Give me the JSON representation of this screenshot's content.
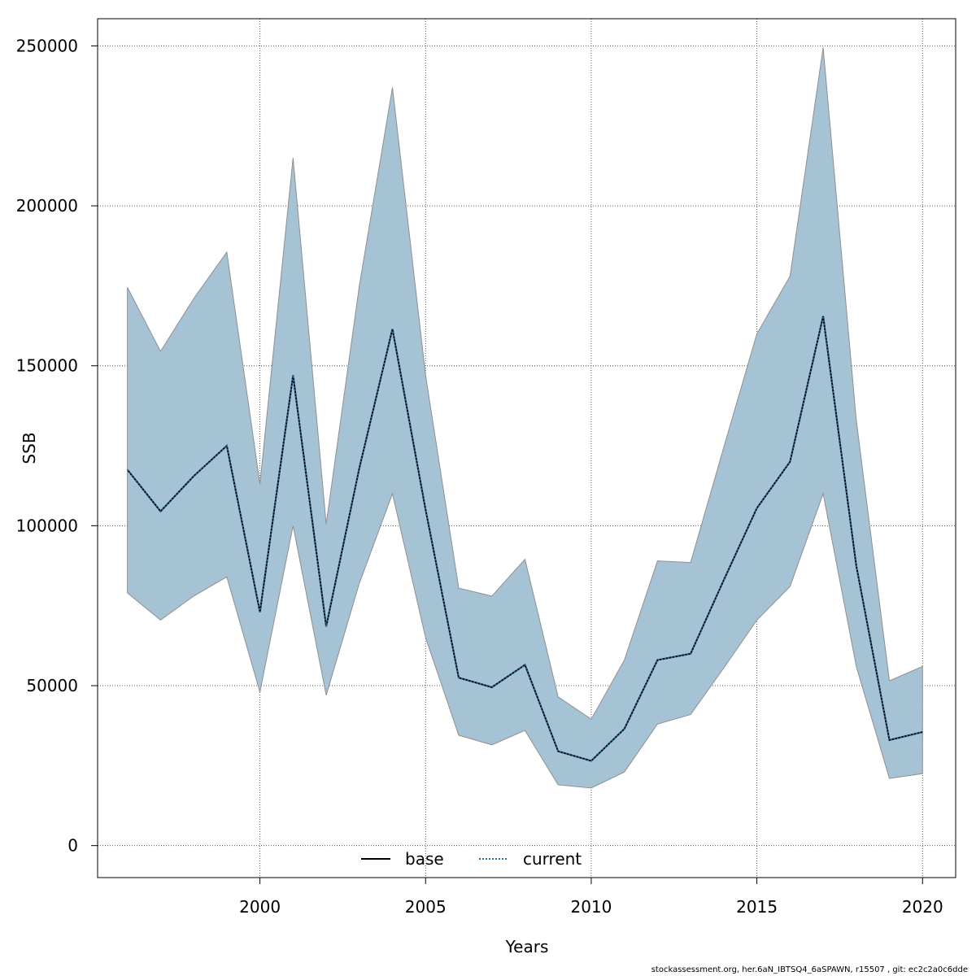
{
  "chart_data": {
    "type": "area",
    "xlabel": "Years",
    "ylabel": "SSB",
    "xlim": [
      1995.1,
      2021
    ],
    "ylim": [
      -10000,
      258500
    ],
    "x_ticks": [
      2000,
      2005,
      2010,
      2015,
      2020
    ],
    "y_ticks": [
      0,
      50000,
      100000,
      150000,
      200000,
      250000
    ],
    "grid": true,
    "legend_position": "bottom",
    "colors": {
      "band_fill": "#a5c3d4",
      "band_stroke": "#8f8f8f",
      "base_line": "#000000",
      "current_line": "#1f6b9a",
      "grid": "#555555"
    },
    "x": [
      1996,
      1997,
      1998,
      1999,
      2000,
      2001,
      2002,
      2003,
      2004,
      2005,
      2006,
      2007,
      2008,
      2009,
      2010,
      2011,
      2012,
      2013,
      2014,
      2015,
      2016,
      2017,
      2018,
      2019,
      2020
    ],
    "upper": [
      174500,
      154500,
      171000,
      185500,
      113000,
      215000,
      100500,
      175000,
      237000,
      147000,
      80500,
      78000,
      89500,
      46500,
      39500,
      58000,
      89000,
      88500,
      124500,
      160000,
      178000,
      249500,
      133000,
      51500,
      56000
    ],
    "lower": [
      79000,
      70500,
      78000,
      84000,
      48000,
      100000,
      47000,
      82000,
      110000,
      65000,
      34500,
      31500,
      36000,
      19000,
      18000,
      23000,
      38000,
      41000,
      55500,
      70500,
      81000,
      110000,
      56000,
      21000,
      22500
    ],
    "series": [
      {
        "name": "base",
        "values": [
          117500,
          104500,
          115500,
          125000,
          73000,
          147000,
          68500,
          118000,
          161500,
          105000,
          52500,
          49500,
          56500,
          29500,
          26500,
          36500,
          58000,
          60000,
          83000,
          105500,
          120000,
          165500,
          87500,
          33000,
          35500
        ]
      },
      {
        "name": "current",
        "values": [
          117500,
          104500,
          115500,
          125000,
          73000,
          147000,
          68500,
          118000,
          161500,
          105000,
          52500,
          49500,
          56500,
          29500,
          26500,
          36500,
          58000,
          60000,
          83000,
          105500,
          120000,
          165500,
          87500,
          33000,
          35500
        ]
      }
    ]
  },
  "footer": "stockassessment.org, her.6aN_IBTSQ4_6aSPAWN, r15507 , git: ec2c2a0c6dde"
}
